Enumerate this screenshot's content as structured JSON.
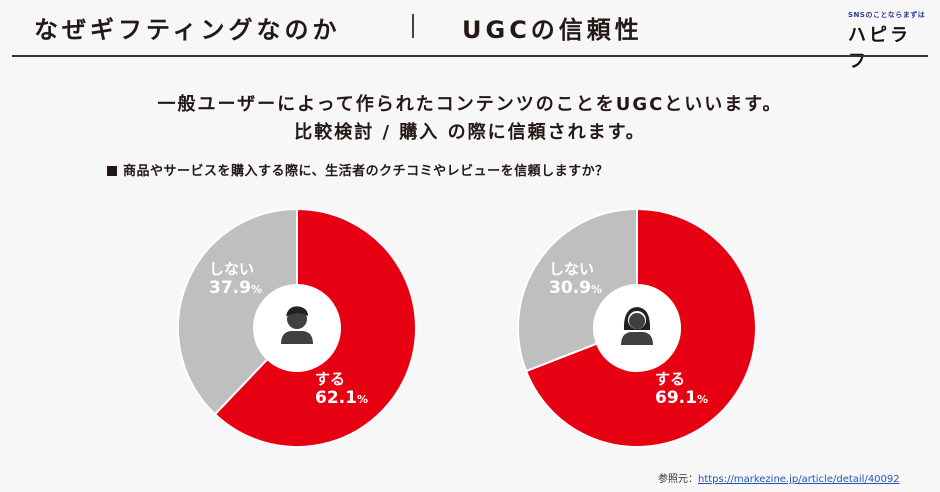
{
  "header": {
    "title": "なぜギフティングなのか",
    "subtitle": "UGCの信頼性",
    "logo_tagline": "SNSのことならまずは",
    "logo_name": "ハピラフ"
  },
  "lead": {
    "line1": "一般ユーザーによって作られたコンテンツのことをUGCといいます。",
    "line2": "比較検討 / 購入 の際に信頼されます。"
  },
  "question": "商品やサービスを購入する際に、生活者のクチコミやレビューを信頼しますか？",
  "colors": {
    "yes": "#e60012",
    "no": "#bfbfbf",
    "icon": "#404040"
  },
  "charts": [
    {
      "icon": "male-user-icon",
      "yes_label": "する",
      "yes_value": "62.1",
      "no_label": "しない",
      "no_value": "37.9",
      "unit": "%"
    },
    {
      "icon": "female-user-icon",
      "yes_label": "する",
      "yes_value": "69.1",
      "no_label": "しない",
      "no_value": "30.9",
      "unit": "%"
    }
  ],
  "reference": {
    "label": "参照元：",
    "url": "https://markezine.jp/article/detail/40092"
  },
  "chart_data": [
    {
      "type": "pie",
      "title": "男性",
      "categories": [
        "する",
        "しない"
      ],
      "values": [
        62.1,
        37.9
      ],
      "unit": "%",
      "colors": [
        "#e60012",
        "#bfbfbf"
      ],
      "donut": true
    },
    {
      "type": "pie",
      "title": "女性",
      "categories": [
        "する",
        "しない"
      ],
      "values": [
        69.1,
        30.9
      ],
      "unit": "%",
      "colors": [
        "#e60012",
        "#bfbfbf"
      ],
      "donut": true
    }
  ]
}
